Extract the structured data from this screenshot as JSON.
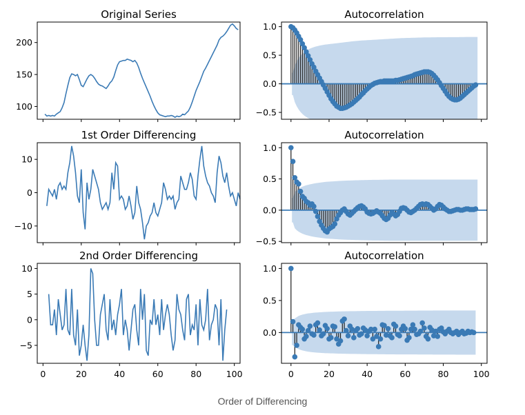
{
  "caption": "Order of Differencing",
  "colors": {
    "line": "#3a7ab5",
    "band": "#c6d9ed",
    "stem": "#1a1a1a",
    "axis": "#000000"
  },
  "chart_data": [
    {
      "type": "line",
      "title": "Original Series",
      "xlim": [
        -3,
        103
      ],
      "ylim": [
        80,
        232
      ],
      "xticks": [
        0,
        20,
        40,
        60,
        80,
        100
      ],
      "show_xtick_labels": false,
      "yticks": [
        100,
        150,
        200
      ],
      "x_start": 1,
      "values": [
        88,
        85,
        86,
        85,
        86,
        85,
        88,
        90,
        92,
        98,
        106,
        120,
        133,
        145,
        151,
        150,
        148,
        150,
        142,
        133,
        131,
        137,
        143,
        148,
        150,
        148,
        144,
        139,
        135,
        133,
        132,
        130,
        128,
        132,
        137,
        140,
        146,
        156,
        165,
        170,
        171,
        172,
        172,
        174,
        173,
        172,
        170,
        172,
        168,
        161,
        152,
        144,
        137,
        130,
        123,
        116,
        108,
        101,
        95,
        90,
        87,
        86,
        85,
        84,
        85,
        85,
        86,
        85,
        83,
        85,
        84,
        85,
        88,
        87,
        90,
        93,
        99,
        107,
        116,
        125,
        132,
        139,
        147,
        155,
        160,
        166,
        172,
        178,
        184,
        190,
        196,
        204,
        208,
        210,
        213,
        217,
        222,
        227,
        229,
        226,
        222,
        220
      ],
      "xlabel": "",
      "ylabel": ""
    },
    {
      "type": "stem",
      "title": "Autocorrelation",
      "xlim": [
        -5,
        103
      ],
      "ylim": [
        -0.62,
        1.08
      ],
      "xticks": [
        0,
        20,
        40,
        60,
        80,
        100
      ],
      "show_xtick_labels": false,
      "yticks": [
        -0.5,
        0.0,
        0.5,
        1.0
      ],
      "confint": [
        0.196,
        0.32,
        0.392,
        0.448,
        0.492,
        0.528,
        0.556,
        0.58,
        0.6,
        0.616,
        0.63,
        0.642,
        0.652,
        0.66,
        0.668,
        0.674,
        0.68,
        0.686,
        0.69,
        0.694,
        0.698,
        0.702,
        0.706,
        0.71,
        0.714,
        0.718,
        0.722,
        0.726,
        0.73,
        0.734,
        0.738,
        0.742,
        0.745,
        0.748,
        0.751,
        0.754,
        0.757,
        0.759,
        0.761,
        0.763,
        0.765,
        0.767,
        0.769,
        0.771,
        0.773,
        0.775,
        0.777,
        0.779,
        0.781,
        0.783,
        0.785,
        0.787,
        0.789,
        0.791,
        0.793,
        0.795,
        0.797,
        0.799,
        0.8,
        0.801,
        0.802,
        0.803,
        0.804,
        0.805,
        0.806,
        0.807,
        0.808,
        0.809,
        0.81,
        0.811,
        0.812,
        0.812,
        0.812,
        0.813,
        0.813,
        0.813,
        0.814,
        0.814,
        0.814,
        0.815,
        0.815,
        0.815,
        0.816,
        0.816,
        0.816,
        0.817,
        0.817,
        0.817,
        0.818,
        0.818,
        0.818,
        0.819,
        0.819,
        0.819,
        0.82,
        0.82,
        0.82,
        0.82
      ],
      "values": [
        1.0,
        0.98,
        0.94,
        0.89,
        0.83,
        0.77,
        0.7,
        0.63,
        0.56,
        0.49,
        0.42,
        0.35,
        0.29,
        0.22,
        0.16,
        0.1,
        0.04,
        -0.02,
        -0.08,
        -0.14,
        -0.2,
        -0.26,
        -0.31,
        -0.35,
        -0.39,
        -0.41,
        -0.43,
        -0.43,
        -0.42,
        -0.41,
        -0.39,
        -0.37,
        -0.35,
        -0.32,
        -0.29,
        -0.26,
        -0.23,
        -0.19,
        -0.16,
        -0.12,
        -0.09,
        -0.06,
        -0.03,
        -0.01,
        0.01,
        0.02,
        0.03,
        0.04,
        0.04,
        0.05,
        0.05,
        0.05,
        0.05,
        0.05,
        0.05,
        0.06,
        0.06,
        0.07,
        0.08,
        0.09,
        0.1,
        0.11,
        0.12,
        0.13,
        0.14,
        0.16,
        0.17,
        0.18,
        0.19,
        0.2,
        0.21,
        0.21,
        0.21,
        0.2,
        0.18,
        0.15,
        0.11,
        0.07,
        0.02,
        -0.03,
        -0.08,
        -0.13,
        -0.18,
        -0.22,
        -0.25,
        -0.27,
        -0.28,
        -0.28,
        -0.27,
        -0.25,
        -0.22,
        -0.19,
        -0.16,
        -0.13,
        -0.1,
        -0.07,
        -0.04,
        -0.02
      ],
      "xlabel": "",
      "ylabel": ""
    },
    {
      "type": "line",
      "title": "1st Order Differencing",
      "xlim": [
        -3,
        103
      ],
      "ylim": [
        -15,
        15
      ],
      "xticks": [
        0,
        20,
        40,
        60,
        80,
        100
      ],
      "show_xtick_labels": false,
      "yticks": [
        -10,
        0,
        10
      ],
      "x_start": 2,
      "values": [
        -4,
        1,
        0,
        -1,
        1,
        -2,
        2,
        3,
        1,
        2,
        1,
        6,
        9,
        14,
        11,
        6,
        -1,
        -3,
        7,
        -6,
        -11,
        3,
        -2,
        1,
        7,
        5,
        3,
        1,
        -3,
        -5,
        -4,
        -3,
        -5,
        -3,
        6,
        1,
        9,
        8,
        -2,
        -1,
        -2,
        -5,
        -4,
        -1,
        -4,
        -8,
        -6,
        2,
        -3,
        -5,
        -9,
        -14,
        -10,
        -9,
        -7,
        -6,
        -3,
        -6,
        -7,
        -5,
        -3,
        3,
        1,
        -2,
        -1,
        -2,
        -1,
        -5,
        -3,
        -2,
        5,
        3,
        1,
        1,
        3,
        6,
        4,
        -1,
        -2,
        5,
        10,
        14,
        8,
        5,
        3,
        2,
        0,
        -1,
        -3,
        6,
        11,
        9,
        5,
        3,
        6,
        2,
        -1,
        0,
        -2,
        -4,
        0,
        -2
      ],
      "xlabel": "",
      "ylabel": ""
    },
    {
      "type": "stem",
      "title": "Autocorrelation",
      "xlim": [
        -5,
        103
      ],
      "ylim": [
        -0.52,
        1.08
      ],
      "xticks": [
        0,
        20,
        40,
        60,
        80,
        100
      ],
      "show_xtick_labels": false,
      "yticks": [
        -0.5,
        0.0,
        0.5,
        1.0
      ],
      "confint": [
        0.196,
        0.29,
        0.322,
        0.344,
        0.362,
        0.376,
        0.388,
        0.398,
        0.406,
        0.414,
        0.42,
        0.426,
        0.432,
        0.436,
        0.44,
        0.444,
        0.448,
        0.452,
        0.455,
        0.457,
        0.459,
        0.461,
        0.463,
        0.465,
        0.467,
        0.469,
        0.471,
        0.472,
        0.473,
        0.474,
        0.475,
        0.476,
        0.477,
        0.478,
        0.479,
        0.48,
        0.481,
        0.482,
        0.483,
        0.483,
        0.484,
        0.484,
        0.485,
        0.485,
        0.486,
        0.486,
        0.487,
        0.487,
        0.488,
        0.488,
        0.488,
        0.489,
        0.489,
        0.489,
        0.49,
        0.49,
        0.49,
        0.49,
        0.49,
        0.49,
        0.49,
        0.49,
        0.49,
        0.49,
        0.49,
        0.49,
        0.49,
        0.49,
        0.49,
        0.49,
        0.49,
        0.49,
        0.49,
        0.49,
        0.49,
        0.49,
        0.49,
        0.49,
        0.49,
        0.49,
        0.49,
        0.49,
        0.49,
        0.49,
        0.49,
        0.49,
        0.49,
        0.49,
        0.49,
        0.49,
        0.49,
        0.49,
        0.49,
        0.49,
        0.49,
        0.49,
        0.49,
        0.49
      ],
      "values": [
        1.0,
        0.78,
        0.52,
        0.45,
        0.42,
        0.3,
        0.22,
        0.19,
        0.14,
        0.12,
        0.08,
        0.1,
        0.06,
        -0.02,
        -0.1,
        -0.18,
        -0.24,
        -0.29,
        -0.33,
        -0.35,
        -0.3,
        -0.28,
        -0.26,
        -0.22,
        -0.14,
        -0.08,
        -0.04,
        0.0,
        0.02,
        -0.02,
        -0.06,
        -0.08,
        -0.05,
        -0.02,
        0.01,
        0.04,
        0.06,
        0.07,
        0.05,
        0.02,
        -0.03,
        -0.05,
        -0.06,
        -0.05,
        -0.03,
        -0.01,
        -0.03,
        -0.05,
        -0.09,
        -0.13,
        -0.15,
        -0.13,
        -0.08,
        -0.04,
        -0.06,
        -0.09,
        -0.07,
        -0.02,
        0.03,
        0.04,
        0.03,
        0.0,
        -0.03,
        -0.04,
        -0.02,
        0.0,
        0.03,
        0.06,
        0.09,
        0.1,
        0.09,
        0.1,
        0.09,
        0.06,
        0.03,
        0.0,
        0.02,
        0.06,
        0.09,
        0.08,
        0.05,
        0.02,
        0.0,
        -0.02,
        -0.02,
        -0.01,
        0.0,
        0.01,
        0.01,
        0.0,
        0.0,
        0.01,
        0.02,
        0.02,
        0.01,
        0.01,
        0.01,
        0.02
      ],
      "xlabel": "",
      "ylabel": ""
    },
    {
      "type": "line",
      "title": "2nd Order Differencing",
      "xlim": [
        -3,
        103
      ],
      "ylim": [
        -8.5,
        11
      ],
      "xticks": [
        0,
        20,
        40,
        60,
        80,
        100
      ],
      "show_xtick_labels": true,
      "yticks": [
        -5,
        0,
        5,
        10
      ],
      "x_start": 3,
      "values": [
        5,
        -1,
        -1,
        2,
        -3,
        4,
        1,
        -2,
        -1,
        6,
        -2,
        -3,
        6,
        -3,
        -5,
        2,
        -7,
        -5,
        -1,
        -5,
        -8,
        -3,
        10,
        9,
        0,
        -5,
        -5,
        1,
        3,
        5,
        -2,
        -4,
        4,
        -2,
        0,
        -3,
        1,
        3,
        6,
        -3,
        0,
        -2,
        -6,
        -2,
        2,
        3,
        -2,
        -5,
        6,
        0,
        5,
        -6,
        -7,
        0,
        -1,
        4,
        -1,
        1,
        -3,
        4,
        -2,
        1,
        3,
        1,
        -3,
        -6,
        -4,
        5,
        2,
        1,
        -2,
        -4,
        4,
        5,
        -3,
        -1,
        -2,
        3,
        -5,
        4,
        -1,
        -2,
        0,
        6,
        -4,
        -1,
        0,
        3,
        2,
        -5,
        4,
        -8,
        -2,
        2
      ],
      "xlabel": "",
      "ylabel": ""
    },
    {
      "type": "stem",
      "title": "Autocorrelation",
      "xlim": [
        -5,
        103
      ],
      "ylim": [
        -0.48,
        1.08
      ],
      "xticks": [
        0,
        20,
        40,
        60,
        80,
        100
      ],
      "show_xtick_labels": true,
      "yticks": [
        0.0,
        0.5,
        1.0
      ],
      "confint": [
        0.196,
        0.22,
        0.24,
        0.26,
        0.27,
        0.28,
        0.287,
        0.293,
        0.298,
        0.302,
        0.306,
        0.309,
        0.312,
        0.314,
        0.316,
        0.318,
        0.32,
        0.322,
        0.323,
        0.324,
        0.325,
        0.326,
        0.327,
        0.328,
        0.329,
        0.33,
        0.331,
        0.331,
        0.332,
        0.332,
        0.333,
        0.333,
        0.334,
        0.334,
        0.335,
        0.335,
        0.336,
        0.336,
        0.336,
        0.337,
        0.337,
        0.337,
        0.338,
        0.338,
        0.338,
        0.339,
        0.339,
        0.339,
        0.339,
        0.34,
        0.34,
        0.34,
        0.34,
        0.34,
        0.341,
        0.341,
        0.341,
        0.341,
        0.341,
        0.342,
        0.342,
        0.342,
        0.342,
        0.342,
        0.342,
        0.342,
        0.343,
        0.343,
        0.343,
        0.343,
        0.343,
        0.343,
        0.343,
        0.343,
        0.344,
        0.344,
        0.344,
        0.344,
        0.344,
        0.344,
        0.344,
        0.344,
        0.344,
        0.344,
        0.344,
        0.344,
        0.345,
        0.345,
        0.345,
        0.345,
        0.345,
        0.345,
        0.345,
        0.345,
        0.345,
        0.345,
        0.345
      ],
      "values": [
        1.0,
        0.17,
        -0.38,
        -0.2,
        0.12,
        0.08,
        0.05,
        -0.1,
        -0.06,
        0.03,
        0.1,
        -0.02,
        -0.04,
        0.12,
        0.15,
        0.04,
        -0.05,
        -0.02,
        0.11,
        0.06,
        -0.1,
        -0.08,
        0.1,
        0.09,
        -0.1,
        -0.18,
        -0.13,
        0.18,
        0.21,
        0.03,
        -0.05,
        0.1,
        0.05,
        -0.08,
        0.03,
        0.06,
        -0.04,
        -0.02,
        0.07,
        0.04,
        -0.05,
        0.02,
        0.05,
        -0.1,
        0.05,
        -0.06,
        -0.22,
        -0.1,
        0.12,
        0.11,
        -0.04,
        0.06,
        -0.05,
        -0.08,
        0.13,
        0.1,
        -0.03,
        -0.05,
        0.05,
        0.1,
        0.06,
        -0.12,
        -0.08,
        0.05,
        0.12,
        0.05,
        -0.03,
        -0.02,
        0.02,
        0.15,
        0.07,
        -0.06,
        -0.1,
        0.08,
        0.04,
        -0.05,
        0.02,
        -0.06,
        0.05,
        0.07,
        0.01,
        -0.02,
        0.02,
        0.05,
        0.0,
        -0.02,
        0.0,
        0.02,
        -0.03,
        0.0,
        0.02,
        -0.02,
        -0.01,
        0.02,
        0.0,
        0.01,
        0.0
      ],
      "xlabel": "",
      "ylabel": ""
    }
  ]
}
